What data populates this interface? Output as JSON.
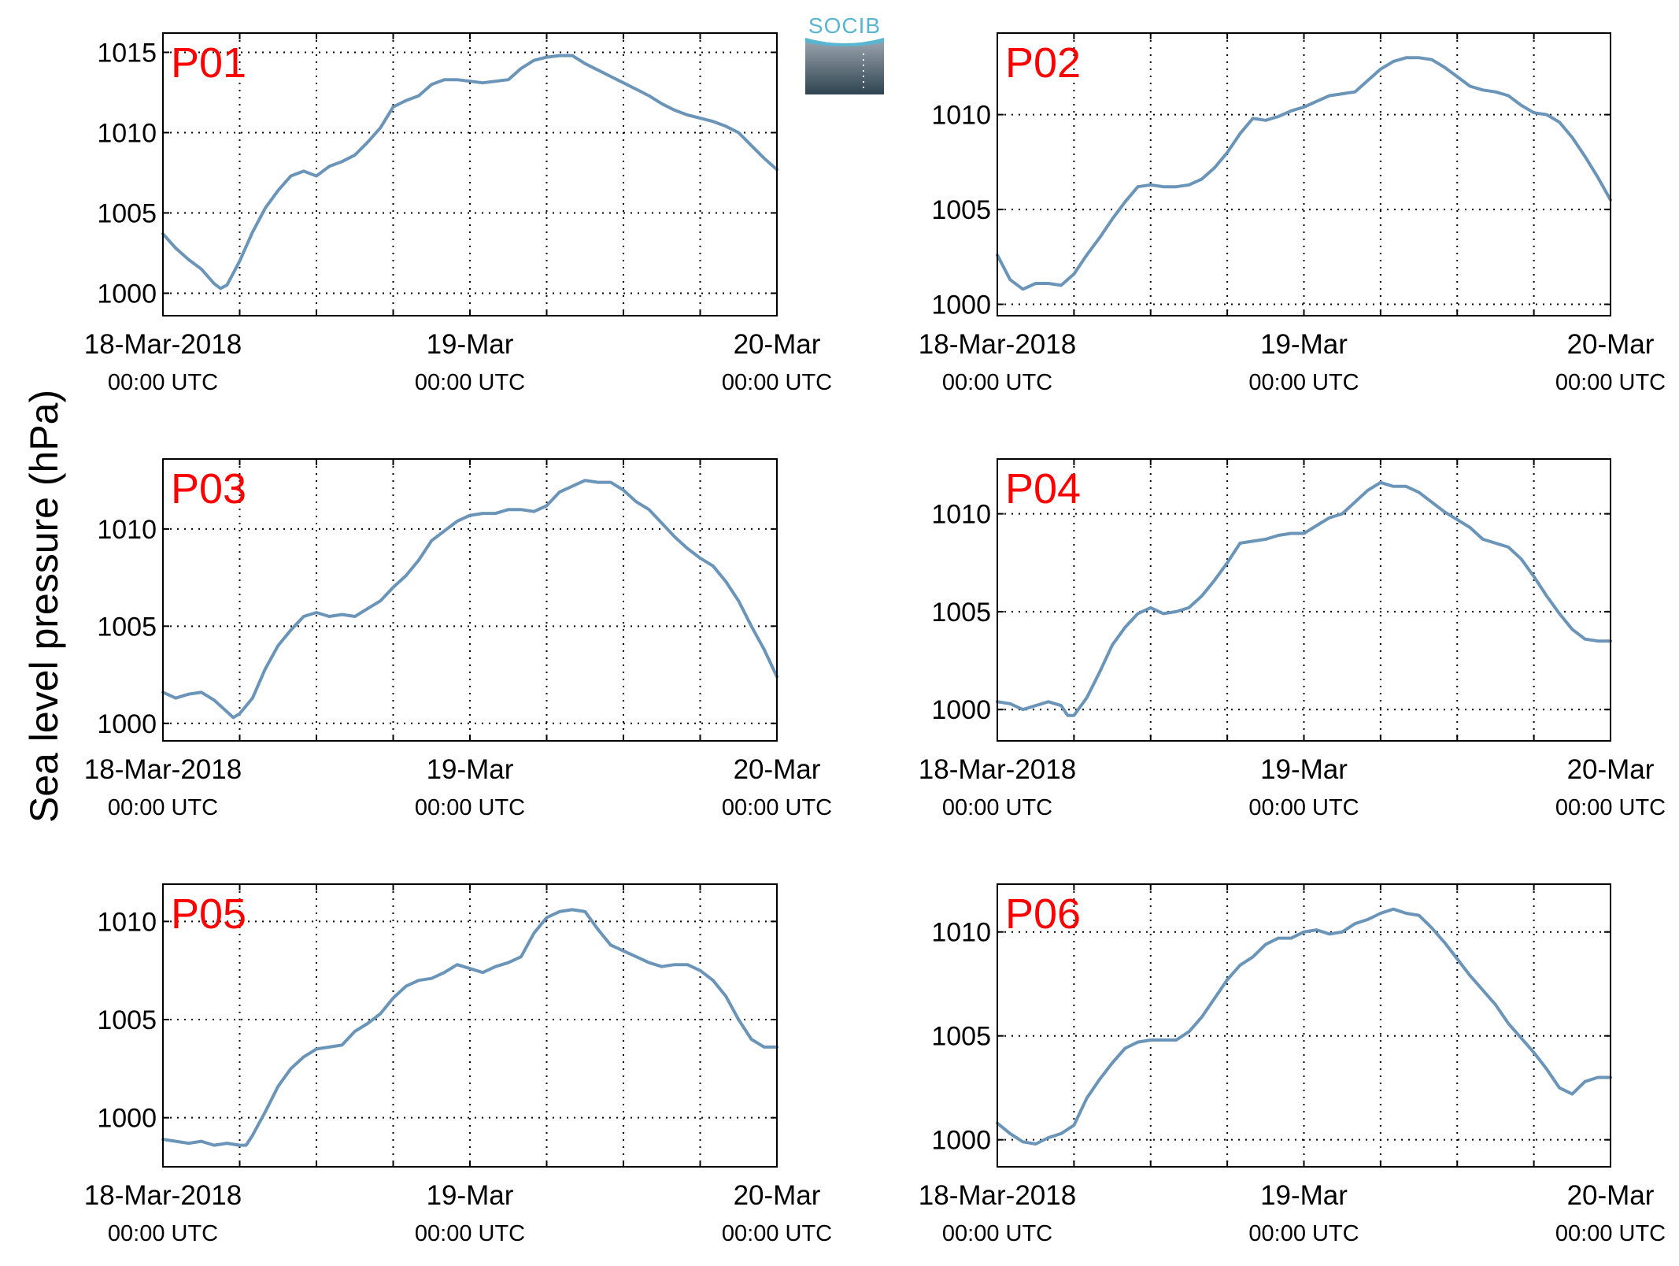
{
  "ylabel": "Sea level pressure (hPa)",
  "logo": {
    "text": "SOCIB"
  },
  "colors": {
    "line": "#6a95b8",
    "panel_label": "#ff0000",
    "axis": "#000000",
    "grid": "#000000"
  },
  "chart_data": [
    {
      "type": "line",
      "label": "P01",
      "x_ticks": [
        {
          "top": "18-Mar-2018",
          "bottom": "00:00 UTC"
        },
        {
          "top": "19-Mar",
          "bottom": "00:00 UTC"
        },
        {
          "top": "20-Mar",
          "bottom": "00:00 UTC"
        }
      ],
      "xlim": [
        0,
        48
      ],
      "ylim": [
        998.6,
        1016.2
      ],
      "yticks": [
        1000,
        1005,
        1010,
        1015
      ],
      "grid": true,
      "x": [
        0,
        1,
        2,
        3,
        4,
        4.5,
        5,
        6,
        7,
        8,
        9,
        10,
        11,
        12,
        13,
        14,
        15,
        16,
        17,
        18,
        19,
        20,
        21,
        22,
        23,
        24,
        25,
        26,
        27,
        28,
        29,
        30,
        31,
        32,
        33,
        34,
        35,
        36,
        37,
        38,
        39,
        40,
        41,
        42,
        43,
        44,
        45,
        46,
        47,
        48
      ],
      "values": [
        1003.7,
        1002.8,
        1002.1,
        1001.5,
        1000.6,
        1000.3,
        1000.5,
        1002.0,
        1003.8,
        1005.3,
        1006.4,
        1007.3,
        1007.6,
        1007.3,
        1007.9,
        1008.2,
        1008.6,
        1009.4,
        1010.3,
        1011.6,
        1012.0,
        1012.3,
        1013.0,
        1013.3,
        1013.3,
        1013.2,
        1013.1,
        1013.2,
        1013.3,
        1014.0,
        1014.5,
        1014.7,
        1014.8,
        1014.8,
        1014.3,
        1013.9,
        1013.5,
        1013.1,
        1012.7,
        1012.3,
        1011.8,
        1011.4,
        1011.1,
        1010.9,
        1010.7,
        1010.4,
        1010.0,
        1009.2,
        1008.4,
        1007.7
      ]
    },
    {
      "type": "line",
      "label": "P02",
      "x_ticks": [
        {
          "top": "18-Mar-2018",
          "bottom": "00:00 UTC"
        },
        {
          "top": "19-Mar",
          "bottom": "00:00 UTC"
        },
        {
          "top": "20-Mar",
          "bottom": "00:00 UTC"
        }
      ],
      "xlim": [
        0,
        48
      ],
      "ylim": [
        999.4,
        1014.3
      ],
      "yticks": [
        1000,
        1005,
        1010
      ],
      "grid": true,
      "x": [
        0,
        1,
        2,
        3,
        4,
        5,
        6,
        7,
        8,
        9,
        10,
        11,
        12,
        13,
        14,
        15,
        16,
        17,
        18,
        19,
        20,
        21,
        22,
        23,
        24,
        25,
        26,
        27,
        28,
        29,
        30,
        31,
        32,
        33,
        34,
        35,
        36,
        37,
        38,
        39,
        40,
        41,
        42,
        43,
        44,
        45,
        46,
        47,
        48
      ],
      "values": [
        1002.6,
        1001.3,
        1000.8,
        1001.1,
        1001.1,
        1001.0,
        1001.6,
        1002.6,
        1003.5,
        1004.5,
        1005.4,
        1006.2,
        1006.3,
        1006.2,
        1006.2,
        1006.3,
        1006.6,
        1007.2,
        1008.0,
        1009.0,
        1009.8,
        1009.7,
        1009.9,
        1010.2,
        1010.4,
        1010.7,
        1011.0,
        1011.1,
        1011.2,
        1011.8,
        1012.4,
        1012.8,
        1013.0,
        1013.0,
        1012.9,
        1012.5,
        1012.0,
        1011.5,
        1011.3,
        1011.2,
        1011.0,
        1010.5,
        1010.1,
        1010.0,
        1009.6,
        1008.8,
        1007.8,
        1006.7,
        1005.5
      ]
    },
    {
      "type": "line",
      "label": "P03",
      "x_ticks": [
        {
          "top": "18-Mar-2018",
          "bottom": "00:00 UTC"
        },
        {
          "top": "19-Mar",
          "bottom": "00:00 UTC"
        },
        {
          "top": "20-Mar",
          "bottom": "00:00 UTC"
        }
      ],
      "xlim": [
        0,
        48
      ],
      "ylim": [
        999.1,
        1013.6
      ],
      "yticks": [
        1000,
        1005,
        1010
      ],
      "grid": true,
      "x": [
        0,
        1,
        2,
        3,
        4,
        5,
        5.5,
        6,
        7,
        8,
        9,
        10,
        11,
        12,
        13,
        14,
        15,
        16,
        17,
        18,
        19,
        20,
        21,
        22,
        23,
        24,
        25,
        26,
        27,
        28,
        29,
        30,
        31,
        32,
        33,
        34,
        35,
        36,
        37,
        38,
        39,
        40,
        41,
        42,
        43,
        44,
        45,
        46,
        47,
        48
      ],
      "values": [
        1001.6,
        1001.3,
        1001.5,
        1001.6,
        1001.2,
        1000.6,
        1000.3,
        1000.5,
        1001.3,
        1002.8,
        1004.0,
        1004.8,
        1005.5,
        1005.7,
        1005.5,
        1005.6,
        1005.5,
        1005.9,
        1006.3,
        1007.0,
        1007.6,
        1008.4,
        1009.4,
        1009.9,
        1010.4,
        1010.7,
        1010.8,
        1010.8,
        1011.0,
        1011.0,
        1010.9,
        1011.2,
        1011.9,
        1012.2,
        1012.5,
        1012.4,
        1012.4,
        1012.0,
        1011.4,
        1011.0,
        1010.3,
        1009.6,
        1009.0,
        1008.5,
        1008.1,
        1007.3,
        1006.3,
        1005.0,
        1003.8,
        1002.4
      ]
    },
    {
      "type": "line",
      "label": "P04",
      "x_ticks": [
        {
          "top": "18-Mar-2018",
          "bottom": "00:00 UTC"
        },
        {
          "top": "19-Mar",
          "bottom": "00:00 UTC"
        },
        {
          "top": "20-Mar",
          "bottom": "00:00 UTC"
        }
      ],
      "xlim": [
        0,
        48
      ],
      "ylim": [
        998.4,
        1012.8
      ],
      "yticks": [
        1000,
        1005,
        1010
      ],
      "grid": true,
      "x": [
        0,
        1,
        2,
        3,
        4,
        5,
        5.5,
        6,
        7,
        8,
        9,
        10,
        11,
        12,
        13,
        14,
        15,
        16,
        17,
        18,
        19,
        20,
        21,
        22,
        23,
        24,
        25,
        26,
        27,
        28,
        29,
        30,
        31,
        32,
        33,
        34,
        35,
        36,
        37,
        38,
        39,
        40,
        41,
        42,
        43,
        44,
        45,
        46,
        47,
        48
      ],
      "values": [
        1000.4,
        1000.3,
        1000.0,
        1000.2,
        1000.4,
        1000.2,
        999.7,
        999.7,
        1000.6,
        1001.9,
        1003.3,
        1004.2,
        1004.9,
        1005.2,
        1004.9,
        1005.0,
        1005.2,
        1005.8,
        1006.6,
        1007.5,
        1008.5,
        1008.6,
        1008.7,
        1008.9,
        1009.0,
        1009.0,
        1009.4,
        1009.8,
        1010.0,
        1010.6,
        1011.2,
        1011.6,
        1011.4,
        1011.4,
        1011.1,
        1010.6,
        1010.1,
        1009.7,
        1009.3,
        1008.7,
        1008.5,
        1008.3,
        1007.7,
        1006.8,
        1005.8,
        1004.9,
        1004.1,
        1003.6,
        1003.5,
        1003.5
      ]
    },
    {
      "type": "line",
      "label": "P05",
      "x_ticks": [
        {
          "top": "18-Mar-2018",
          "bottom": "00:00 UTC"
        },
        {
          "top": "19-Mar",
          "bottom": "00:00 UTC"
        },
        {
          "top": "20-Mar",
          "bottom": "00:00 UTC"
        }
      ],
      "xlim": [
        0,
        48
      ],
      "ylim": [
        997.5,
        1011.9
      ],
      "yticks": [
        1000,
        1005,
        1010
      ],
      "grid": true,
      "x": [
        0,
        1,
        2,
        3,
        4,
        5,
        6,
        6.5,
        7,
        8,
        9,
        10,
        11,
        12,
        13,
        14,
        15,
        16,
        17,
        18,
        19,
        20,
        21,
        22,
        23,
        24,
        25,
        26,
        27,
        28,
        29,
        30,
        31,
        32,
        33,
        34,
        35,
        36,
        37,
        38,
        39,
        40,
        41,
        42,
        43,
        44,
        45,
        46,
        47,
        48
      ],
      "values": [
        998.9,
        998.8,
        998.7,
        998.8,
        998.6,
        998.7,
        998.6,
        998.6,
        999.1,
        1000.3,
        1001.6,
        1002.5,
        1003.1,
        1003.5,
        1003.6,
        1003.7,
        1004.4,
        1004.8,
        1005.3,
        1006.1,
        1006.7,
        1007.0,
        1007.1,
        1007.4,
        1007.8,
        1007.6,
        1007.4,
        1007.7,
        1007.9,
        1008.2,
        1009.4,
        1010.2,
        1010.5,
        1010.6,
        1010.5,
        1009.6,
        1008.8,
        1008.5,
        1008.2,
        1007.9,
        1007.7,
        1007.8,
        1007.8,
        1007.5,
        1007.0,
        1006.2,
        1005.0,
        1004.0,
        1003.6,
        1003.6
      ]
    },
    {
      "type": "line",
      "label": "P06",
      "x_ticks": [
        {
          "top": "18-Mar-2018",
          "bottom": "00:00 UTC"
        },
        {
          "top": "19-Mar",
          "bottom": "00:00 UTC"
        },
        {
          "top": "20-Mar",
          "bottom": "00:00 UTC"
        }
      ],
      "xlim": [
        0,
        48
      ],
      "ylim": [
        998.7,
        1012.3
      ],
      "yticks": [
        1000,
        1005,
        1010
      ],
      "grid": true,
      "x": [
        0,
        1,
        2,
        3,
        4,
        5,
        6,
        7,
        8,
        9,
        10,
        11,
        12,
        13,
        14,
        15,
        16,
        17,
        18,
        19,
        20,
        21,
        22,
        23,
        24,
        25,
        26,
        27,
        28,
        29,
        30,
        31,
        32,
        33,
        34,
        35,
        36,
        37,
        38,
        39,
        40,
        41,
        42,
        43,
        44,
        45,
        46,
        47,
        48
      ],
      "values": [
        1000.8,
        1000.3,
        999.9,
        999.8,
        1000.1,
        1000.3,
        1000.7,
        1002.0,
        1002.9,
        1003.7,
        1004.4,
        1004.7,
        1004.8,
        1004.8,
        1004.8,
        1005.2,
        1005.9,
        1006.8,
        1007.7,
        1008.4,
        1008.8,
        1009.4,
        1009.7,
        1009.7,
        1010.0,
        1010.1,
        1009.9,
        1010.0,
        1010.4,
        1010.6,
        1010.9,
        1011.1,
        1010.9,
        1010.8,
        1010.2,
        1009.5,
        1008.7,
        1007.9,
        1007.2,
        1006.5,
        1005.6,
        1004.9,
        1004.2,
        1003.4,
        1002.5,
        1002.2,
        1002.8,
        1003.0,
        1003.0
      ]
    }
  ]
}
